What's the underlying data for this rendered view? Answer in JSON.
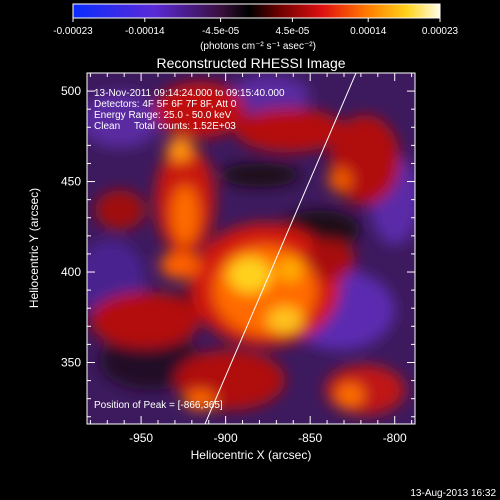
{
  "colorbar": {
    "tick_labels": [
      "-0.00023",
      "-0.00014",
      "-4.5e-05",
      "4.5e-05",
      "0.00014",
      "0.00023"
    ],
    "unit_label": "(photons cm⁻² s⁻¹ asec⁻²)",
    "range": [
      -0.00023,
      0.00023
    ]
  },
  "image": {
    "title": "Reconstructed RHESSI Image",
    "info_lines": [
      "13-Nov-2011 09:14:24.000 to 09:15:40.000",
      "Detectors: 4F 5F 6F 7F 8F, Att 0",
      "Energy Range: 25.0 - 50.0 keV",
      "Clean     Total counts: 1.52E+03"
    ],
    "peak_label": "Position of Peak = [-866,365]",
    "peak_position": [
      -866,
      365
    ]
  },
  "axes": {
    "xlabel": "Heliocentric X (arcsec)",
    "ylabel": "Heliocentric Y (arcsec)",
    "x_ticks": [
      "-950",
      "-900",
      "-850",
      "-800"
    ],
    "y_ticks": [
      "350",
      "400",
      "450",
      "500"
    ],
    "x_tick_values": [
      -950,
      -900,
      -850,
      -800
    ],
    "y_tick_values": [
      350,
      400,
      450,
      500
    ],
    "xlim": [
      -982,
      -788
    ],
    "ylim": [
      316,
      510
    ]
  },
  "footer": {
    "timestamp": "13-Aug-2013 16:32"
  }
}
